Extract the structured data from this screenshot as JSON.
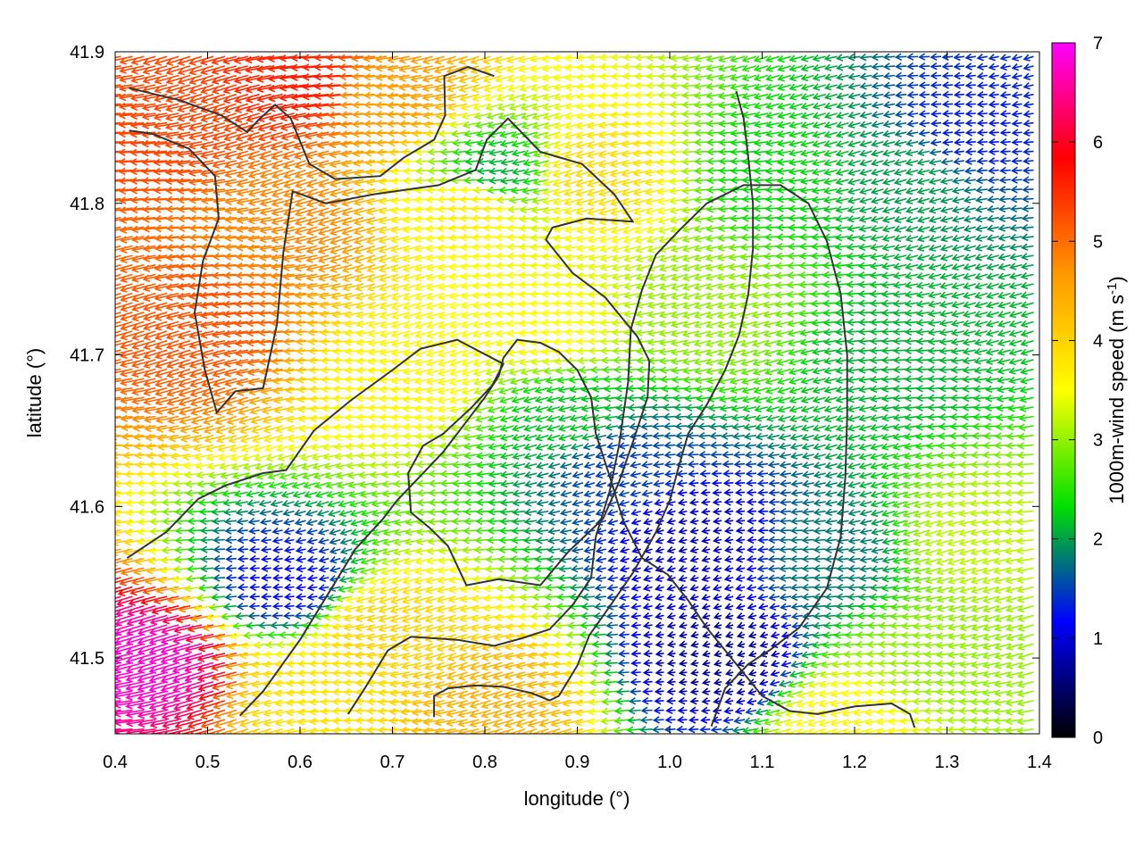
{
  "chart_data": {
    "type": "quiver",
    "xlabel": "longitude (°)",
    "ylabel": "latitude (°)",
    "colorbar": {
      "label_main": "1000m-wind speed (m s",
      "label_sup": "-1",
      "label_close": ")",
      "range": [
        0,
        7
      ],
      "ticks": [
        "0",
        "1",
        "2",
        "3",
        "4",
        "5",
        "6",
        "7"
      ],
      "palette": [
        "#000000",
        "#0000ff",
        "#00e000",
        "#ffff00",
        "#ff9900",
        "#ff0000",
        "#ff00ff"
      ]
    },
    "xlim": [
      0.4,
      1.4
    ],
    "ylim": [
      41.45,
      41.9
    ],
    "x_ticks": [
      "0.4",
      "0.5",
      "0.6",
      "0.7",
      "0.8",
      "0.9",
      "1.0",
      "1.1",
      "1.2",
      "1.3",
      "1.4"
    ],
    "y_ticks": [
      "41.5",
      "41.6",
      "41.7",
      "41.8",
      "41.9"
    ],
    "wind_field": {
      "grid_step_lon": 0.0125,
      "grid_step_lat": 0.00625,
      "predominant_direction": "from east-northeast",
      "speed_regions": [
        {
          "lon": 0.45,
          "lat": 41.5,
          "speed": 6.8
        },
        {
          "lon": 0.46,
          "lat": 41.85,
          "speed": 5.3
        },
        {
          "lon": 0.5,
          "lat": 41.72,
          "speed": 5.2
        },
        {
          "lon": 0.62,
          "lat": 41.88,
          "speed": 5.6
        },
        {
          "lon": 0.6,
          "lat": 41.79,
          "speed": 4.8
        },
        {
          "lon": 0.7,
          "lat": 41.87,
          "speed": 4.6
        },
        {
          "lon": 0.73,
          "lat": 41.69,
          "speed": 3.6
        },
        {
          "lon": 0.8,
          "lat": 41.8,
          "speed": 3.7
        },
        {
          "lon": 0.93,
          "lat": 41.82,
          "speed": 3.9
        },
        {
          "lon": 0.88,
          "lat": 41.72,
          "speed": 3.5
        },
        {
          "lon": 0.82,
          "lat": 41.82,
          "speed": 2.1
        },
        {
          "lon": 0.9,
          "lat": 41.66,
          "speed": 2.2
        },
        {
          "lon": 0.95,
          "lat": 41.63,
          "speed": 1.5
        },
        {
          "lon": 1.04,
          "lat": 41.58,
          "speed": 0.9
        },
        {
          "lon": 1.06,
          "lat": 41.5,
          "speed": 0.7
        },
        {
          "lon": 0.59,
          "lat": 41.55,
          "speed": 1.2
        },
        {
          "lon": 1.18,
          "lat": 41.57,
          "speed": 1.8
        },
        {
          "lon": 1.13,
          "lat": 41.82,
          "speed": 2.3
        },
        {
          "lon": 1.05,
          "lat": 41.73,
          "speed": 3.0
        },
        {
          "lon": 1.33,
          "lat": 41.85,
          "speed": 1.3
        },
        {
          "lon": 1.26,
          "lat": 41.82,
          "speed": 2.0
        },
        {
          "lon": 1.25,
          "lat": 41.7,
          "speed": 2.1
        },
        {
          "lon": 1.34,
          "lat": 41.58,
          "speed": 3.2
        },
        {
          "lon": 1.3,
          "lat": 41.5,
          "speed": 3.0
        },
        {
          "lon": 1.2,
          "lat": 41.46,
          "speed": 3.6
        },
        {
          "lon": 0.82,
          "lat": 41.47,
          "speed": 4.4
        },
        {
          "lon": 0.7,
          "lat": 41.52,
          "speed": 4.0
        },
        {
          "lon": 0.63,
          "lat": 41.48,
          "speed": 3.8
        }
      ]
    },
    "contours": [
      [
        [
          0.415,
          41.876
        ],
        [
          0.47,
          41.868
        ],
        [
          0.515,
          41.858
        ],
        [
          0.543,
          41.847
        ],
        [
          0.555,
          41.855
        ],
        [
          0.573,
          41.865
        ],
        [
          0.59,
          41.856
        ],
        [
          0.61,
          41.826
        ],
        [
          0.638,
          41.816
        ],
        [
          0.687,
          41.818
        ],
        [
          0.712,
          41.83
        ],
        [
          0.745,
          41.842
        ],
        [
          0.757,
          41.858
        ],
        [
          0.756,
          41.884
        ],
        [
          0.782,
          41.89
        ],
        [
          0.81,
          41.884
        ]
      ],
      [
        [
          0.415,
          41.848
        ],
        [
          0.44,
          41.846
        ],
        [
          0.48,
          41.836
        ],
        [
          0.508,
          41.818
        ],
        [
          0.512,
          41.79
        ],
        [
          0.495,
          41.762
        ],
        [
          0.486,
          41.728
        ],
        [
          0.497,
          41.69
        ],
        [
          0.51,
          41.662
        ],
        [
          0.53,
          41.676
        ],
        [
          0.56,
          41.678
        ],
        [
          0.575,
          41.72
        ],
        [
          0.582,
          41.768
        ],
        [
          0.592,
          41.808
        ],
        [
          0.628,
          41.8
        ],
        [
          0.68,
          41.806
        ],
        [
          0.75,
          41.812
        ],
        [
          0.79,
          41.822
        ],
        [
          0.802,
          41.842
        ],
        [
          0.825,
          41.856
        ],
        [
          0.86,
          41.834
        ],
        [
          0.905,
          41.826
        ],
        [
          0.94,
          41.806
        ],
        [
          0.96,
          41.788
        ],
        [
          0.91,
          41.79
        ],
        [
          0.873,
          41.784
        ],
        [
          0.866,
          41.776
        ],
        [
          0.895,
          41.754
        ],
        [
          0.93,
          41.738
        ],
        [
          0.965,
          41.712
        ],
        [
          0.978,
          41.696
        ],
        [
          0.976,
          41.672
        ],
        [
          0.961,
          41.644
        ],
        [
          0.945,
          41.616
        ],
        [
          0.928,
          41.592
        ],
        [
          0.89,
          41.57
        ],
        [
          0.86,
          41.548
        ],
        [
          0.815,
          41.552
        ],
        [
          0.78,
          41.548
        ],
        [
          0.76,
          41.574
        ],
        [
          0.74,
          41.586
        ],
        [
          0.72,
          41.596
        ],
        [
          0.717,
          41.622
        ],
        [
          0.733,
          41.64
        ],
        [
          0.755,
          41.648
        ],
        [
          0.785,
          41.665
        ],
        [
          0.808,
          41.68
        ],
        [
          0.82,
          41.694
        ],
        [
          0.77,
          41.71
        ],
        [
          0.73,
          41.704
        ],
        [
          0.7,
          41.69
        ],
        [
          0.655,
          41.67
        ],
        [
          0.615,
          41.65
        ],
        [
          0.585,
          41.624
        ],
        [
          0.56,
          41.622
        ],
        [
          0.52,
          41.614
        ],
        [
          0.49,
          41.605
        ],
        [
          0.455,
          41.583
        ],
        [
          0.413,
          41.566
        ]
      ],
      [
        [
          0.652,
          41.463
        ],
        [
          0.67,
          41.48
        ],
        [
          0.695,
          41.505
        ],
        [
          0.72,
          41.514
        ],
        [
          0.77,
          41.512
        ],
        [
          0.81,
          41.508
        ],
        [
          0.84,
          41.513
        ],
        [
          0.87,
          41.519
        ],
        [
          0.895,
          41.535
        ],
        [
          0.915,
          41.553
        ],
        [
          0.92,
          41.58
        ],
        [
          0.935,
          41.61
        ],
        [
          0.945,
          41.64
        ],
        [
          0.955,
          41.682
        ],
        [
          0.958,
          41.717
        ],
        [
          0.97,
          41.743
        ],
        [
          0.985,
          41.766
        ],
        [
          1.01,
          41.782
        ],
        [
          1.04,
          41.8
        ],
        [
          1.08,
          41.812
        ],
        [
          1.12,
          41.812
        ],
        [
          1.15,
          41.8
        ],
        [
          1.17,
          41.775
        ],
        [
          1.185,
          41.74
        ],
        [
          1.192,
          41.7
        ],
        [
          1.192,
          41.66
        ],
        [
          1.19,
          41.62
        ],
        [
          1.185,
          41.58
        ],
        [
          1.17,
          41.546
        ],
        [
          1.14,
          41.52
        ],
        [
          1.11,
          41.506
        ],
        [
          1.085,
          41.496
        ],
        [
          1.06,
          41.48
        ],
        [
          1.045,
          41.455
        ]
      ],
      [
        [
          0.745,
          41.461
        ],
        [
          0.745,
          41.475
        ],
        [
          0.76,
          41.48
        ],
        [
          0.79,
          41.482
        ],
        [
          0.82,
          41.481
        ],
        [
          0.85,
          41.477
        ],
        [
          0.87,
          41.472
        ],
        [
          0.88,
          41.475
        ],
        [
          0.9,
          41.495
        ],
        [
          0.913,
          41.515
        ],
        [
          0.935,
          41.534
        ],
        [
          0.96,
          41.556
        ],
        [
          0.985,
          41.583
        ],
        [
          1.0,
          41.604
        ],
        [
          1.01,
          41.627
        ],
        [
          1.02,
          41.648
        ],
        [
          1.04,
          41.667
        ],
        [
          1.06,
          41.69
        ],
        [
          1.075,
          41.713
        ],
        [
          1.085,
          41.74
        ],
        [
          1.09,
          41.77
        ],
        [
          1.09,
          41.8
        ],
        [
          1.085,
          41.83
        ],
        [
          1.08,
          41.856
        ],
        [
          1.072,
          41.874
        ]
      ],
      [
        [
          0.535,
          41.462
        ],
        [
          0.56,
          41.478
        ],
        [
          0.58,
          41.495
        ],
        [
          0.6,
          41.512
        ],
        [
          0.63,
          41.542
        ],
        [
          0.66,
          41.572
        ],
        [
          0.69,
          41.592
        ],
        [
          0.705,
          41.604
        ],
        [
          0.73,
          41.62
        ],
        [
          0.755,
          41.636
        ],
        [
          0.78,
          41.656
        ],
        [
          0.8,
          41.672
        ],
        [
          0.815,
          41.686
        ],
        [
          0.82,
          41.698
        ],
        [
          0.835,
          41.71
        ],
        [
          0.86,
          41.708
        ],
        [
          0.88,
          41.702
        ],
        [
          0.9,
          41.69
        ],
        [
          0.915,
          41.672
        ],
        [
          0.92,
          41.648
        ],
        [
          0.935,
          41.62
        ],
        [
          0.95,
          41.59
        ],
        [
          0.97,
          41.566
        ],
        [
          0.998,
          41.555
        ],
        [
          1.02,
          41.538
        ],
        [
          1.04,
          41.52
        ],
        [
          1.06,
          41.505
        ],
        [
          1.08,
          41.49
        ],
        [
          1.1,
          41.475
        ],
        [
          1.13,
          41.465
        ],
        [
          1.16,
          41.463
        ],
        [
          1.2,
          41.468
        ],
        [
          1.24,
          41.47
        ],
        [
          1.26,
          41.463
        ],
        [
          1.265,
          41.454
        ]
      ]
    ]
  }
}
